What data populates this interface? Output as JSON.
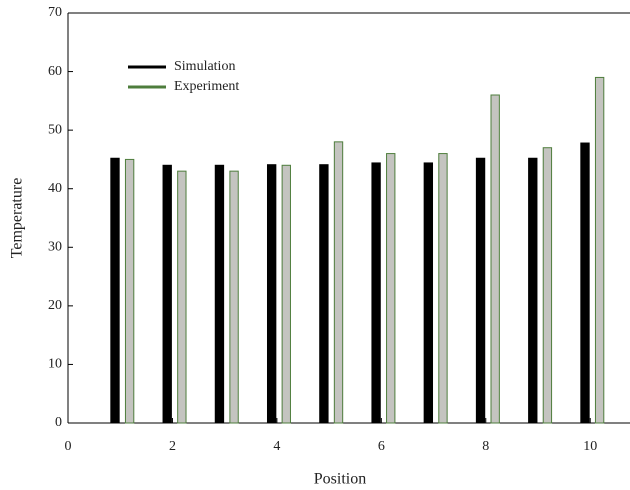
{
  "chart_data": {
    "type": "bar",
    "x": [
      1,
      2,
      3,
      4,
      5,
      6,
      7,
      8,
      9,
      10
    ],
    "series": [
      {
        "name": "Simulation",
        "color": "#000000",
        "edgecolor": "#000000",
        "values": [
          45.2,
          44,
          44,
          44.1,
          44.1,
          44.4,
          44.4,
          45.2,
          45.2,
          47.8
        ]
      },
      {
        "name": "Experiment",
        "color": "#c4c4c0",
        "edgecolor": "#4e7d3c",
        "values": [
          45,
          43,
          43,
          44,
          48,
          46,
          46,
          56,
          47,
          59
        ]
      }
    ],
    "xlabel": "Position",
    "ylabel": "Temperature",
    "xlim": [
      0,
      10.8
    ],
    "xticks": [
      0,
      2,
      4,
      6,
      8,
      10
    ],
    "ylim": [
      0,
      70
    ],
    "yticks": [
      0,
      10,
      20,
      30,
      40,
      50,
      60,
      70
    ],
    "legend": "upper left"
  }
}
